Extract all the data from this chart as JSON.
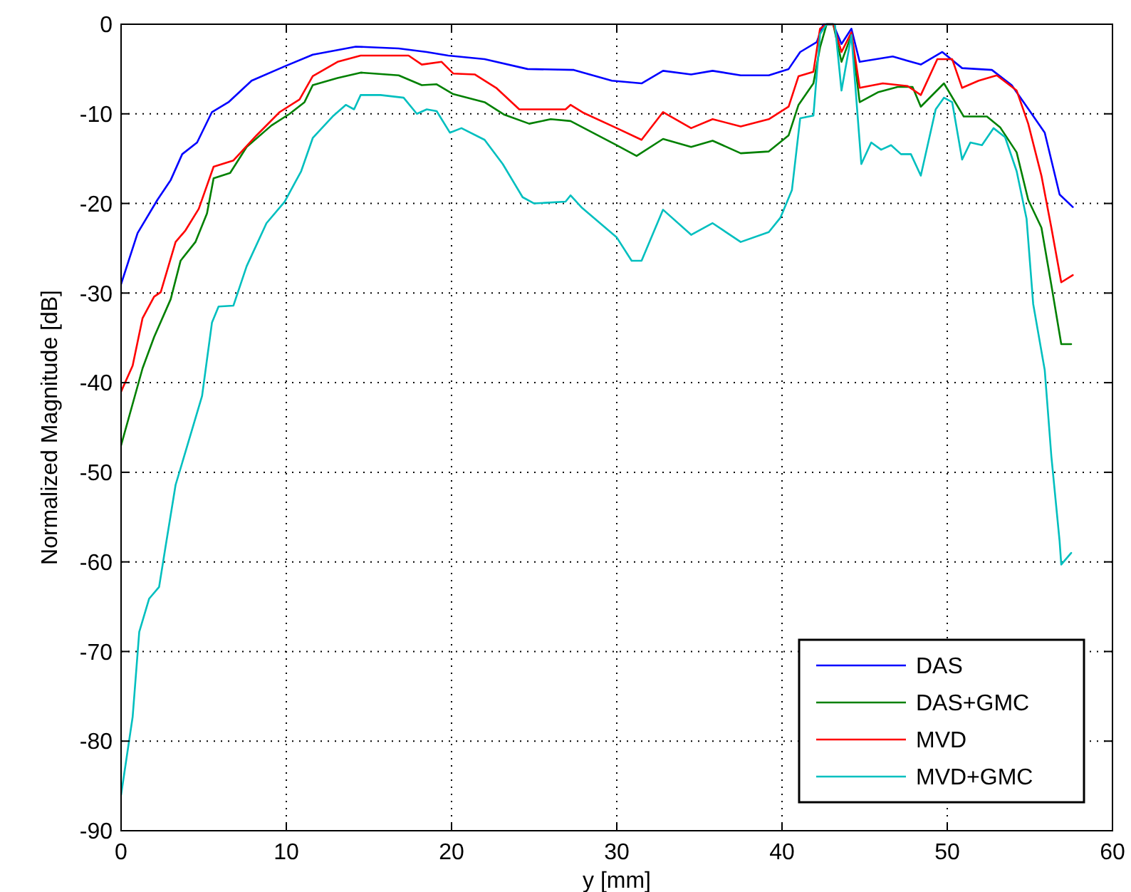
{
  "chart_data": {
    "type": "line",
    "xlabel": "y [mm]",
    "ylabel": "Normalized Magnitude [dB]",
    "xlim": [
      0,
      60
    ],
    "ylim": [
      -90,
      0
    ],
    "xticks": [
      0,
      10,
      20,
      30,
      40,
      50,
      60
    ],
    "yticks": [
      -90,
      -80,
      -70,
      -60,
      -50,
      -40,
      -30,
      -20,
      -10,
      0
    ],
    "grid": true,
    "legend": "bottom right",
    "line_style": "solid",
    "marker": "none",
    "series": [
      {
        "name": "DAS",
        "color": "#0000ff",
        "x": [
          0,
          1,
          2.2,
          3,
          3.7,
          4.6,
          5.5,
          6.5,
          7.9,
          9.9,
          11.6,
          14.2,
          16.8,
          18.5,
          19.8,
          22,
          24.6,
          27.4,
          29.7,
          31.5,
          32.8,
          34.5,
          35.8,
          37.5,
          39.2,
          40.4,
          41.1,
          42.1,
          42.5,
          43.1,
          43.6,
          44.2,
          44.7,
          46.7,
          48.4,
          49.7,
          50.9,
          52.7,
          53.9,
          55,
          55.9,
          56.8,
          57.6
        ],
        "values": [
          -29,
          -23.3,
          -19.6,
          -17.4,
          -14.5,
          -13.2,
          -9.8,
          -8.7,
          -6.3,
          -4.7,
          -3.4,
          -2.5,
          -2.7,
          -3.1,
          -3.5,
          -3.9,
          -5,
          -5.1,
          -6.3,
          -6.6,
          -5.2,
          -5.6,
          -5.2,
          -5.7,
          -5.7,
          -5,
          -3.1,
          -2,
          0,
          0,
          -2.2,
          -0.5,
          -4.2,
          -3.6,
          -4.5,
          -3.1,
          -4.9,
          -5.1,
          -6.8,
          -9.7,
          -12.1,
          -19,
          -20.4
        ]
      },
      {
        "name": "DAS+GMC",
        "color": "#008000",
        "x": [
          0,
          1.3,
          2,
          3,
          3.6,
          4.5,
          5.2,
          5.6,
          6.6,
          7.6,
          9.1,
          10.2,
          11.1,
          11.6,
          13.1,
          14.5,
          16.8,
          18.2,
          19.1,
          20.1,
          22,
          23.2,
          24.7,
          26,
          27.2,
          30,
          31.2,
          32.8,
          34.5,
          35.8,
          37.5,
          39.2,
          40.4,
          41,
          41.9,
          42.3,
          42.7,
          43.1,
          43.6,
          44.2,
          44.7,
          45.8,
          47,
          47.9,
          48.4,
          49.8,
          51,
          52.4,
          53.2,
          54.2,
          54.9,
          55.7,
          56.3,
          56.9,
          57.5
        ],
        "values": [
          -47,
          -38.4,
          -34.9,
          -30.7,
          -26.4,
          -24.3,
          -21.1,
          -17.2,
          -16.6,
          -13.7,
          -11.3,
          -10,
          -8.7,
          -6.8,
          -6,
          -5.4,
          -5.7,
          -6.8,
          -6.7,
          -7.8,
          -8.7,
          -10.1,
          -11.1,
          -10.6,
          -10.8,
          -13.5,
          -14.7,
          -12.8,
          -13.7,
          -13,
          -14.4,
          -14.2,
          -12.4,
          -9,
          -6.6,
          -2.6,
          0,
          0,
          -4.2,
          -1.2,
          -8.7,
          -7.6,
          -7,
          -7,
          -9.2,
          -6.6,
          -10.3,
          -10.3,
          -11.5,
          -14.3,
          -19.6,
          -22.7,
          -29.1,
          -35.7,
          -35.7
        ]
      },
      {
        "name": "MVD",
        "color": "#ff0000",
        "x": [
          0,
          0.7,
          1.3,
          2,
          2.4,
          3.3,
          3.9,
          4.7,
          5.6,
          6.8,
          8.2,
          9.6,
          10.8,
          11.6,
          13.1,
          14.5,
          17.4,
          18.2,
          19.4,
          20.1,
          21.4,
          22.7,
          24.1,
          26.9,
          27.2,
          28,
          30,
          31.5,
          32.8,
          34.5,
          35.8,
          37.5,
          39.2,
          40.4,
          41,
          41.9,
          42.3,
          42.7,
          43.1,
          43.6,
          44.2,
          44.7,
          46.1,
          47.6,
          48.4,
          49.4,
          50.3,
          50.9,
          51.9,
          53,
          54.2,
          54.9,
          55.7,
          56.3,
          56.9,
          57.6
        ],
        "values": [
          -41,
          -38.1,
          -32.8,
          -30.4,
          -29.9,
          -24.3,
          -23,
          -20.6,
          -15.9,
          -15.2,
          -12.4,
          -9.8,
          -8.4,
          -5.8,
          -4.2,
          -3.5,
          -3.5,
          -4.5,
          -4.2,
          -5.5,
          -5.6,
          -7.1,
          -9.5,
          -9.5,
          -9,
          -9.9,
          -11.6,
          -12.9,
          -9.8,
          -11.6,
          -10.6,
          -11.4,
          -10.6,
          -9.2,
          -5.8,
          -5.3,
          -0.5,
          0,
          0,
          -3.1,
          -0.9,
          -7.1,
          -6.6,
          -6.9,
          -7.9,
          -3.9,
          -3.9,
          -7.1,
          -6.3,
          -5.7,
          -7.4,
          -11.1,
          -16.9,
          -22.7,
          -28.8,
          -28
        ]
      },
      {
        "name": "MVD+GMC",
        "color": "#00bfbf",
        "x": [
          0,
          0.7,
          1.1,
          1.7,
          2.3,
          2.7,
          3.3,
          3.9,
          4.9,
          5.5,
          5.9,
          6.8,
          7.6,
          8.8,
          9.9,
          10.9,
          11.6,
          12.8,
          13.6,
          14.1,
          14.5,
          15.7,
          17.1,
          17.9,
          18.5,
          19.1,
          19.9,
          20.6,
          22,
          23.1,
          24.3,
          25,
          26.9,
          27.2,
          27.9,
          30,
          30.9,
          31.5,
          32.8,
          34.5,
          35.8,
          37.5,
          39.2,
          39.9,
          40.6,
          41.1,
          41.9,
          42.3,
          42.7,
          43.2,
          43.6,
          44.2,
          44.8,
          45.4,
          46,
          46.6,
          47.2,
          47.8,
          48.4,
          49.3,
          49.8,
          50.3,
          50.9,
          51.4,
          52.1,
          52.8,
          53.5,
          54.2,
          54.8,
          55.2,
          55.9,
          56.3,
          56.8,
          56.9,
          57.5
        ],
        "values": [
          -86,
          -77.3,
          -67.8,
          -64.1,
          -62.8,
          -58.2,
          -51.4,
          -47.7,
          -41.5,
          -33.3,
          -31.5,
          -31.4,
          -27,
          -22.2,
          -19.8,
          -16.4,
          -12.7,
          -10.3,
          -9,
          -9.5,
          -7.9,
          -7.9,
          -8.2,
          -10,
          -9.5,
          -9.7,
          -12.1,
          -11.6,
          -12.9,
          -15.6,
          -19.3,
          -20,
          -19.8,
          -19.1,
          -20.5,
          -23.8,
          -26.4,
          -26.4,
          -20.7,
          -23.5,
          -22.2,
          -24.3,
          -23.2,
          -21.6,
          -18.5,
          -10.5,
          -10.2,
          -1.1,
          0,
          0,
          -7.4,
          -1.2,
          -15.6,
          -13.2,
          -14,
          -13.5,
          -14.5,
          -14.5,
          -16.9,
          -9.5,
          -8.2,
          -8.7,
          -15.1,
          -13.2,
          -13.5,
          -11.6,
          -12.6,
          -16.4,
          -21.7,
          -31.2,
          -38.6,
          -48.2,
          -57.7,
          -60.3,
          -59
        ]
      }
    ]
  }
}
